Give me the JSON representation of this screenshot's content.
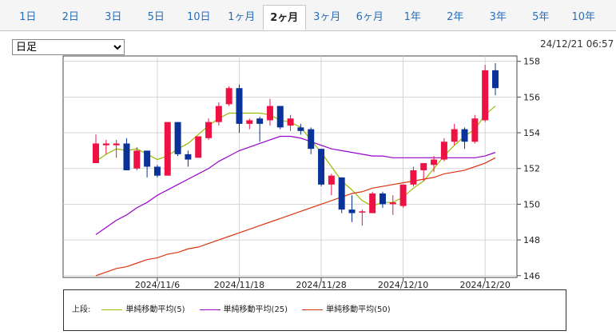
{
  "tabs": [
    {
      "label": "1日",
      "active": false
    },
    {
      "label": "2日",
      "active": false
    },
    {
      "label": "3日",
      "active": false
    },
    {
      "label": "5日",
      "active": false
    },
    {
      "label": "10日",
      "active": false
    },
    {
      "label": "1ヶ月",
      "active": false
    },
    {
      "label": "2ヶ月",
      "active": true
    },
    {
      "label": "3ヶ月",
      "active": false
    },
    {
      "label": "6ヶ月",
      "active": false
    },
    {
      "label": "1年",
      "active": false
    },
    {
      "label": "2年",
      "active": false
    },
    {
      "label": "3年",
      "active": false
    },
    {
      "label": "5年",
      "active": false
    },
    {
      "label": "10年",
      "active": false
    }
  ],
  "period_select": {
    "value": "日足",
    "options": [
      "日足"
    ]
  },
  "timestamp": "24/12/21 06:57",
  "colors": {
    "up": "#ee1144",
    "down": "#0a3399",
    "ma5": "#99bb00",
    "ma25": "#9900cc",
    "ma50": "#dd3311"
  },
  "legend": {
    "prefix": "上段:",
    "items": [
      {
        "label": "単純移動平均(5)",
        "color": "#99bb00"
      },
      {
        "label": "単純移動平均(25)",
        "color": "#9900cc"
      },
      {
        "label": "単純移動平均(50)",
        "color": "#dd3311"
      }
    ]
  },
  "chart_data": {
    "type": "candlestick",
    "ylim": [
      145.9,
      158.3
    ],
    "yticks": [
      146,
      148,
      150,
      152,
      154,
      156,
      158
    ],
    "xtick_labels": [
      {
        "label": "2024/11/6",
        "index": 6
      },
      {
        "label": "2024/11/18",
        "index": 14
      },
      {
        "label": "2024/11/28",
        "index": 22
      },
      {
        "label": "2024/12/10",
        "index": 30
      },
      {
        "label": "2024/12/20",
        "index": 38
      }
    ],
    "candles": [
      {
        "o": 152.3,
        "h": 153.9,
        "l": 152.3,
        "c": 153.4
      },
      {
        "o": 153.3,
        "h": 153.6,
        "l": 152.8,
        "c": 153.4
      },
      {
        "o": 153.3,
        "h": 153.6,
        "l": 152.6,
        "c": 153.4
      },
      {
        "o": 153.4,
        "h": 153.7,
        "l": 151.9,
        "c": 151.9
      },
      {
        "o": 152.0,
        "h": 153.2,
        "l": 151.9,
        "c": 153.0
      },
      {
        "o": 153.0,
        "h": 153.0,
        "l": 151.5,
        "c": 152.1
      },
      {
        "o": 152.1,
        "h": 152.2,
        "l": 151.5,
        "c": 151.6
      },
      {
        "o": 151.6,
        "h": 154.6,
        "l": 151.6,
        "c": 154.6
      },
      {
        "o": 154.6,
        "h": 154.6,
        "l": 152.7,
        "c": 152.8
      },
      {
        "o": 152.8,
        "h": 153.0,
        "l": 152.1,
        "c": 152.5
      },
      {
        "o": 152.6,
        "h": 153.8,
        "l": 152.6,
        "c": 153.8
      },
      {
        "o": 153.7,
        "h": 154.8,
        "l": 153.6,
        "c": 154.6
      },
      {
        "o": 154.6,
        "h": 155.7,
        "l": 154.4,
        "c": 155.5
      },
      {
        "o": 155.6,
        "h": 156.6,
        "l": 155.5,
        "c": 156.5
      },
      {
        "o": 156.5,
        "h": 156.7,
        "l": 154.0,
        "c": 154.5
      },
      {
        "o": 154.5,
        "h": 154.8,
        "l": 154.2,
        "c": 154.7
      },
      {
        "o": 154.8,
        "h": 154.9,
        "l": 153.5,
        "c": 154.5
      },
      {
        "o": 154.7,
        "h": 155.9,
        "l": 154.4,
        "c": 155.5
      },
      {
        "o": 155.5,
        "h": 155.5,
        "l": 154.2,
        "c": 154.3
      },
      {
        "o": 154.4,
        "h": 155.0,
        "l": 154.1,
        "c": 154.8
      },
      {
        "o": 154.3,
        "h": 154.5,
        "l": 153.9,
        "c": 154.1
      },
      {
        "o": 154.2,
        "h": 154.3,
        "l": 152.8,
        "c": 153.1
      },
      {
        "o": 153.1,
        "h": 153.1,
        "l": 151.0,
        "c": 151.1
      },
      {
        "o": 151.1,
        "h": 151.7,
        "l": 150.5,
        "c": 151.6
      },
      {
        "o": 151.5,
        "h": 151.5,
        "l": 149.5,
        "c": 149.7
      },
      {
        "o": 149.7,
        "h": 150.5,
        "l": 149.0,
        "c": 149.5
      },
      {
        "o": 149.6,
        "h": 149.7,
        "l": 148.8,
        "c": 149.6
      },
      {
        "o": 149.5,
        "h": 150.7,
        "l": 149.5,
        "c": 150.6
      },
      {
        "o": 150.6,
        "h": 150.7,
        "l": 149.8,
        "c": 150.0
      },
      {
        "o": 150.0,
        "h": 150.5,
        "l": 149.4,
        "c": 150.1
      },
      {
        "o": 149.9,
        "h": 151.1,
        "l": 149.8,
        "c": 151.1
      },
      {
        "o": 151.1,
        "h": 152.1,
        "l": 151.0,
        "c": 151.9
      },
      {
        "o": 151.9,
        "h": 152.3,
        "l": 151.3,
        "c": 152.3
      },
      {
        "o": 152.2,
        "h": 152.7,
        "l": 151.8,
        "c": 152.5
      },
      {
        "o": 152.5,
        "h": 153.7,
        "l": 152.4,
        "c": 153.5
      },
      {
        "o": 153.5,
        "h": 154.5,
        "l": 153.3,
        "c": 154.2
      },
      {
        "o": 154.2,
        "h": 154.3,
        "l": 153.1,
        "c": 153.5
      },
      {
        "o": 153.5,
        "h": 155.0,
        "l": 153.4,
        "c": 154.8
      },
      {
        "o": 154.7,
        "h": 157.8,
        "l": 154.6,
        "c": 157.5
      },
      {
        "o": 157.5,
        "h": 157.9,
        "l": 156.1,
        "c": 156.5
      }
    ],
    "series": [
      {
        "name": "単純移動平均(5)",
        "values": [
          152.4,
          152.8,
          153.1,
          153.0,
          153.1,
          152.8,
          152.5,
          152.7,
          153.1,
          153.4,
          153.9,
          154.4,
          154.8,
          155.1,
          155.1,
          155.1,
          155.1,
          155.0,
          154.7,
          154.6,
          154.3,
          153.6,
          152.9,
          152.1,
          151.3,
          150.8,
          150.2,
          149.9,
          150.1,
          150.1,
          150.4,
          150.9,
          151.3,
          152.0,
          152.7,
          153.3,
          153.8,
          154.2,
          155.0,
          155.5
        ]
      },
      {
        "name": "単純移動平均(25)",
        "values": [
          148.3,
          148.7,
          149.1,
          149.4,
          149.8,
          150.1,
          150.5,
          150.8,
          151.1,
          151.4,
          151.7,
          152.0,
          152.4,
          152.7,
          153.0,
          153.2,
          153.4,
          153.6,
          153.8,
          153.8,
          153.7,
          153.5,
          153.3,
          153.1,
          153.0,
          152.9,
          152.8,
          152.7,
          152.7,
          152.6,
          152.6,
          152.6,
          152.6,
          152.6,
          152.6,
          152.6,
          152.6,
          152.6,
          152.7,
          152.9
        ]
      },
      {
        "name": "単純移動平均(50)",
        "values": [
          146.0,
          146.2,
          146.4,
          146.5,
          146.7,
          146.9,
          147.0,
          147.2,
          147.3,
          147.5,
          147.6,
          147.8,
          148.0,
          148.2,
          148.4,
          148.6,
          148.8,
          149.0,
          149.2,
          149.4,
          149.6,
          149.8,
          150.0,
          150.2,
          150.4,
          150.6,
          150.7,
          150.9,
          151.0,
          151.1,
          151.2,
          151.3,
          151.4,
          151.5,
          151.7,
          151.8,
          151.9,
          152.1,
          152.3,
          152.6
        ]
      }
    ]
  }
}
